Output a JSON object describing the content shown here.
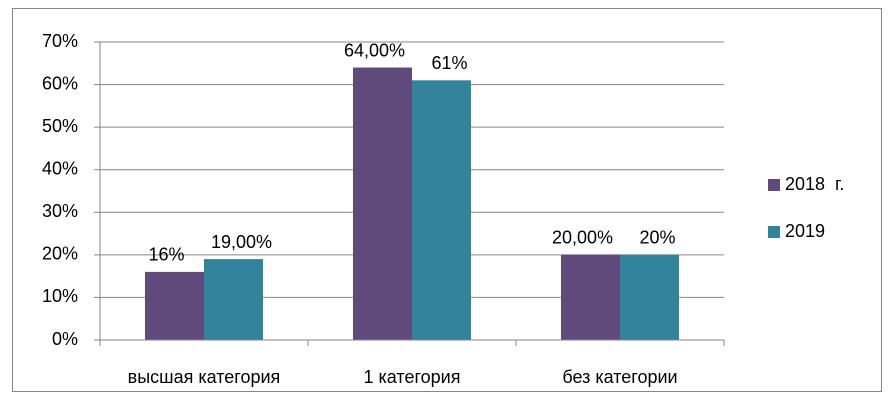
{
  "chart_data": {
    "type": "bar",
    "categories": [
      "высшая категория",
      "1 категория",
      "без категории"
    ],
    "series": [
      {
        "name": "2018  г.",
        "color": "#604a7b",
        "values": [
          16,
          64,
          20
        ],
        "value_labels": [
          "16%",
          "64,00%",
          "20,00%"
        ]
      },
      {
        "name": "2019",
        "color": "#31849b",
        "values": [
          19,
          61,
          20
        ],
        "value_labels": [
          "19,00%",
          "61%",
          "20%"
        ]
      }
    ],
    "ylim": [
      0,
      70
    ],
    "yticks": [
      {
        "value": 0,
        "label": "0%"
      },
      {
        "value": 10,
        "label": "10%"
      },
      {
        "value": 20,
        "label": "20%"
      },
      {
        "value": 30,
        "label": "30%"
      },
      {
        "value": 40,
        "label": "40%"
      },
      {
        "value": 50,
        "label": "50%"
      },
      {
        "value": 60,
        "label": "60%"
      },
      {
        "value": 70,
        "label": "70%"
      }
    ],
    "grid": true,
    "legend": "right"
  }
}
